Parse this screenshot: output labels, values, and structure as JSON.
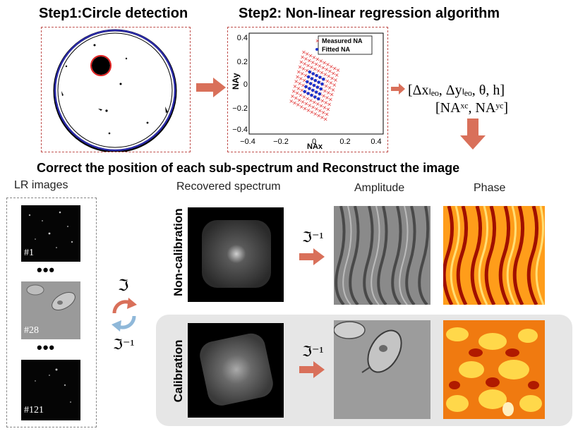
{
  "step1": {
    "title": "Step1:Circle detection"
  },
  "step2": {
    "title": "Step2: Non-linear regression algorithm",
    "plot": {
      "ylabel": "NAy",
      "xlabel": "NAx",
      "legend": {
        "measured": "Measured NA",
        "fitted": "Fitted NA"
      },
      "xticks": [
        "−0.4",
        "−0.2",
        "0",
        "0.2",
        "0.4"
      ],
      "yticks": [
        "0.4",
        "0.2",
        "0",
        "−0.2",
        "−0.4"
      ]
    }
  },
  "params": {
    "line1": "[Δxₗₑₒ, Δyₗₑₒ, θ, h]",
    "line2": "[NAˣᶜ, NAʸᶜ]"
  },
  "section_title": "Correct the position of each sub-spectrum and Reconstruct the image",
  "lr": {
    "header": "LR images",
    "labels": [
      "#1",
      "#28",
      "#121"
    ],
    "dots": "•••"
  },
  "ops": {
    "forward": "ℑ",
    "inverse": "ℑ⁻¹"
  },
  "columns": {
    "spectrum": "Recovered spectrum",
    "amplitude": "Amplitude",
    "phase": "Phase"
  },
  "rows": {
    "noncal": "Non-calibration",
    "cal": "Calibration"
  },
  "colors": {
    "arrow": "#d9705a",
    "dash": "#c0504d",
    "measured": "#e03030",
    "fitted": "#1a33cc",
    "panel": "#e6e6e6"
  }
}
